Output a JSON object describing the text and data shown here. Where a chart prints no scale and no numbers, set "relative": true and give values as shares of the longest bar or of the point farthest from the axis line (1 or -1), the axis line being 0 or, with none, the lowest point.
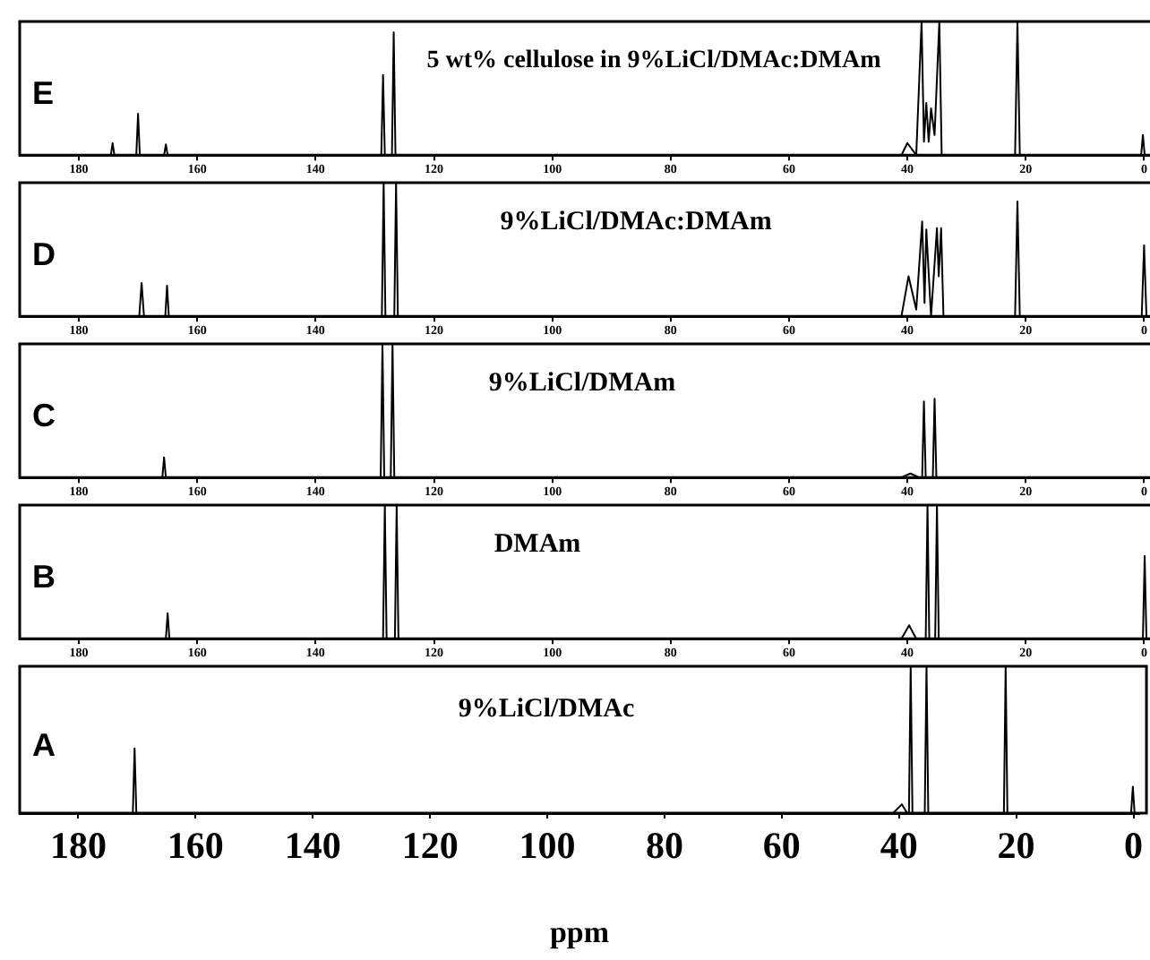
{
  "chart_data": [
    {
      "type": "line",
      "title": "5 wt% cellulose in 9%LiCl/DMAc:DMAm",
      "annotations": [
        "E"
      ],
      "color": "#000000",
      "relative": true,
      "xlim": [
        190,
        -1
      ],
      "xticks": [
        180,
        160,
        140,
        120,
        100,
        80,
        60,
        40,
        20,
        0
      ],
      "tick_labels": "x",
      "x": [
        190,
        174.6,
        174.3,
        174,
        170.3,
        170,
        169.7,
        165.6,
        165.3,
        165,
        128.9,
        128.6,
        128.3,
        127.1,
        126.8,
        126.5,
        41,
        40,
        38.5,
        37.6,
        37.2,
        36.8,
        36.4,
        36,
        35.4,
        34.6,
        34.2,
        21.8,
        21.4,
        21,
        0.5,
        0.2,
        -0.1,
        -1
      ],
      "values": [
        0,
        0,
        0.09,
        0,
        0,
        0.31,
        0,
        0,
        0.08,
        0,
        0,
        0.6,
        0,
        0,
        0.92,
        0,
        0,
        0.09,
        0,
        1,
        0.1,
        0.39,
        0.1,
        0.35,
        0.15,
        1,
        0,
        0,
        1,
        0,
        0,
        0.15,
        0,
        0
      ]
    },
    {
      "type": "line",
      "title": "9%LiCl/DMAc:DMAm",
      "annotations": [
        "D"
      ],
      "color": "#000000",
      "relative": true,
      "xlim": [
        190,
        -1
      ],
      "xticks": [
        180,
        160,
        140,
        120,
        100,
        80,
        60,
        40,
        20,
        0
      ],
      "tick_labels": "x",
      "x": [
        190,
        169.8,
        169.4,
        169,
        165.4,
        165.1,
        164.8,
        128.8,
        128.5,
        128.2,
        126.7,
        126.4,
        126.1,
        41,
        39.8,
        38.5,
        37.5,
        37.1,
        36.8,
        36,
        35,
        34.7,
        34.3,
        33.9,
        21.8,
        21.4,
        21,
        0.4,
        0,
        -0.4,
        -1
      ],
      "values": [
        0,
        0,
        0.25,
        0,
        0,
        0.23,
        0,
        0,
        1,
        0,
        0,
        1,
        0,
        0,
        0.3,
        0.05,
        0.71,
        0.1,
        0.65,
        0,
        0.66,
        0.3,
        0.66,
        0,
        0,
        0.86,
        0,
        0,
        0.53,
        0,
        0
      ]
    },
    {
      "type": "line",
      "title": "9%LiCl/DMAm",
      "annotations": [
        "C"
      ],
      "color": "#000000",
      "relative": true,
      "xlim": [
        190,
        -1
      ],
      "xticks": [
        180,
        160,
        140,
        120,
        100,
        80,
        60,
        40,
        20,
        0
      ],
      "tick_labels": "x",
      "x": [
        190,
        165.9,
        165.6,
        165.3,
        129,
        128.7,
        128.4,
        127.3,
        127,
        126.7,
        41,
        39.5,
        38,
        37.5,
        37.2,
        36.9,
        35.7,
        35.4,
        35.1,
        -1
      ],
      "values": [
        0,
        0,
        0.15,
        0,
        0,
        1,
        0,
        0,
        1,
        0,
        0,
        0.03,
        0,
        0,
        0.57,
        0,
        0,
        0.59,
        0,
        0
      ]
    },
    {
      "type": "line",
      "title": "DMAm",
      "annotations": [
        "B"
      ],
      "color": "#000000",
      "relative": true,
      "xlim": [
        190,
        -1
      ],
      "xticks": [
        180,
        160,
        140,
        120,
        100,
        80,
        60,
        40,
        20,
        0
      ],
      "tick_labels": "x",
      "x": [
        190,
        165.3,
        165,
        164.7,
        128.6,
        128.3,
        128,
        126.6,
        126.3,
        126,
        41,
        39.7,
        38.5,
        36.9,
        36.6,
        36.3,
        35.3,
        35,
        34.7,
        0.2,
        -0.1,
        -0.4,
        -1
      ],
      "values": [
        0,
        0,
        0.19,
        0,
        0,
        1,
        0,
        0,
        1,
        0,
        0,
        0.1,
        0,
        0,
        1,
        0,
        0,
        1,
        0,
        0,
        0.62,
        0,
        0
      ]
    },
    {
      "type": "line",
      "title": "9%LiCl/DMAc",
      "annotations": [
        "A"
      ],
      "xlabel": "ppm",
      "color": "#000000",
      "relative": true,
      "xlim": [
        190,
        -1
      ],
      "xticks": [
        180,
        160,
        140,
        120,
        100,
        80,
        60,
        40,
        20,
        0
      ],
      "tick_labels": "x",
      "x": [
        190,
        170.7,
        170.4,
        170.1,
        41,
        39.5,
        38.6,
        38.3,
        38,
        37.7,
        35.6,
        35.3,
        35,
        22.1,
        21.8,
        21.5,
        0.4,
        0.1,
        -0.2,
        -1
      ],
      "values": [
        0,
        0,
        0.44,
        0,
        0,
        0.06,
        0,
        0,
        1,
        0,
        0,
        1,
        0,
        0,
        1,
        0,
        0,
        0.18,
        0,
        0
      ]
    }
  ]
}
